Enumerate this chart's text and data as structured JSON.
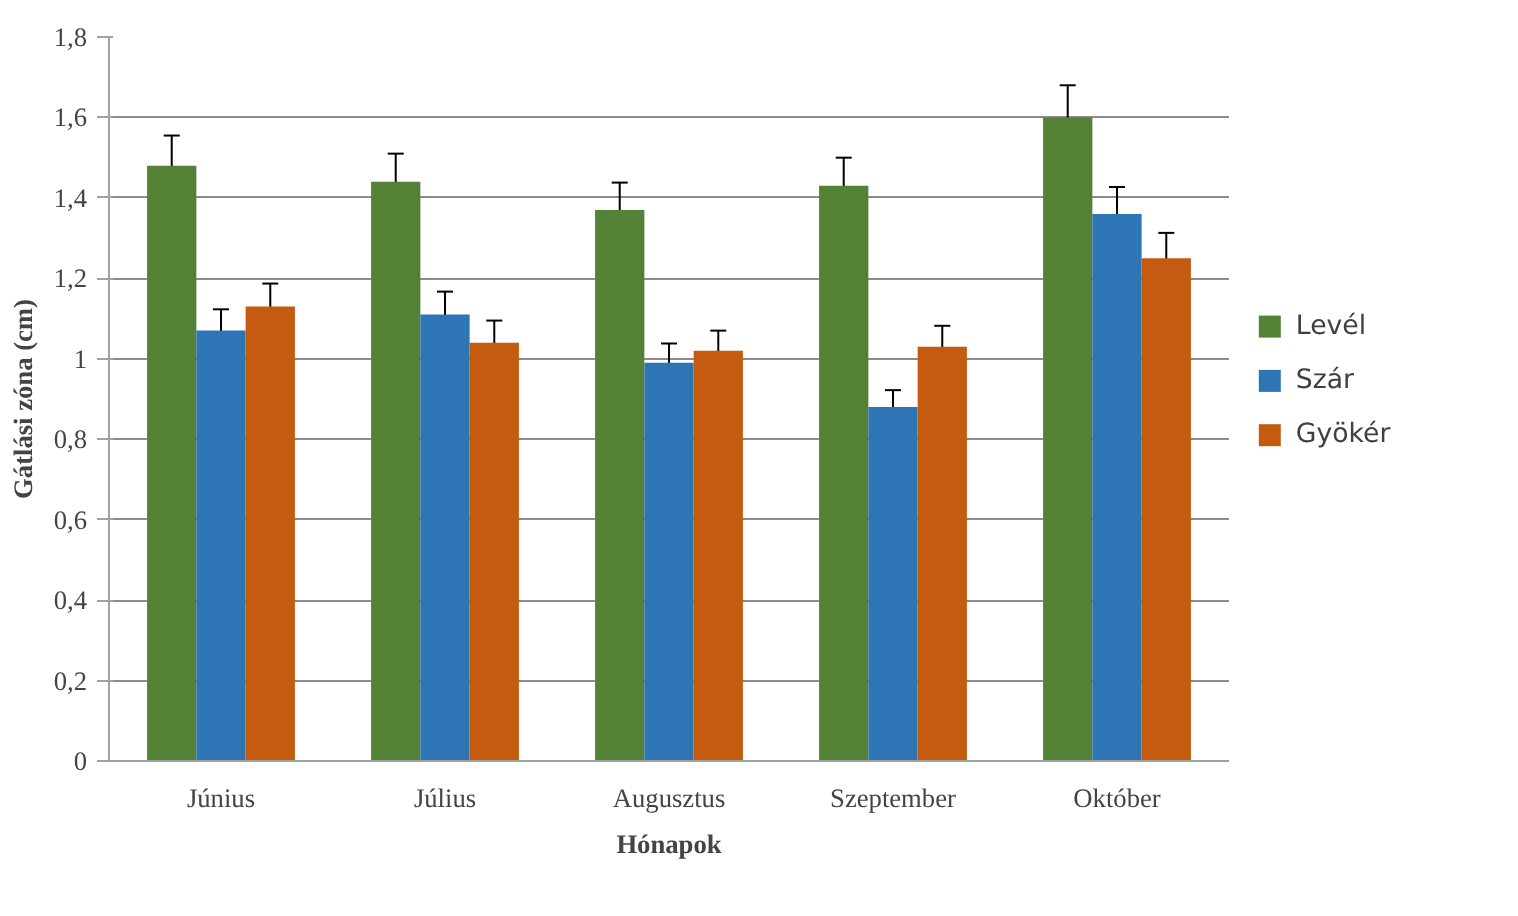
{
  "chart_data": {
    "type": "bar",
    "xlabel": "Hónapok",
    "ylabel": "Gátlási zóna (cm)",
    "categories": [
      "Június",
      "Július",
      "Augusztus",
      "Szeptember",
      "Október"
    ],
    "series": [
      {
        "name": "Levél",
        "color": "#538135",
        "values": [
          1.48,
          1.44,
          1.37,
          1.43,
          1.6
        ],
        "errors": [
          0.075,
          0.07,
          0.068,
          0.07,
          0.08
        ]
      },
      {
        "name": "Szár",
        "color": "#2e75b6",
        "values": [
          1.07,
          1.11,
          0.99,
          0.88,
          1.36
        ],
        "errors": [
          0.053,
          0.057,
          0.048,
          0.042,
          0.067
        ]
      },
      {
        "name": "Gyökér",
        "color": "#c55a11",
        "values": [
          1.13,
          1.04,
          1.02,
          1.03,
          1.25
        ],
        "errors": [
          0.057,
          0.055,
          0.05,
          0.052,
          0.063
        ]
      }
    ],
    "ylim": [
      0,
      1.8
    ],
    "yticks": [
      {
        "value": 0,
        "label": "0"
      },
      {
        "value": 0.2,
        "label": "0,2"
      },
      {
        "value": 0.4,
        "label": "0,4"
      },
      {
        "value": 0.6,
        "label": "0,6"
      },
      {
        "value": 0.8,
        "label": "0,8"
      },
      {
        "value": 1,
        "label": "1"
      },
      {
        "value": 1.2,
        "label": "1,2"
      },
      {
        "value": 1.4,
        "label": "1,4"
      },
      {
        "value": 1.6,
        "label": "1,6"
      },
      {
        "value": 1.8,
        "label": "1,8"
      }
    ],
    "grid": "y",
    "legend": "right"
  }
}
